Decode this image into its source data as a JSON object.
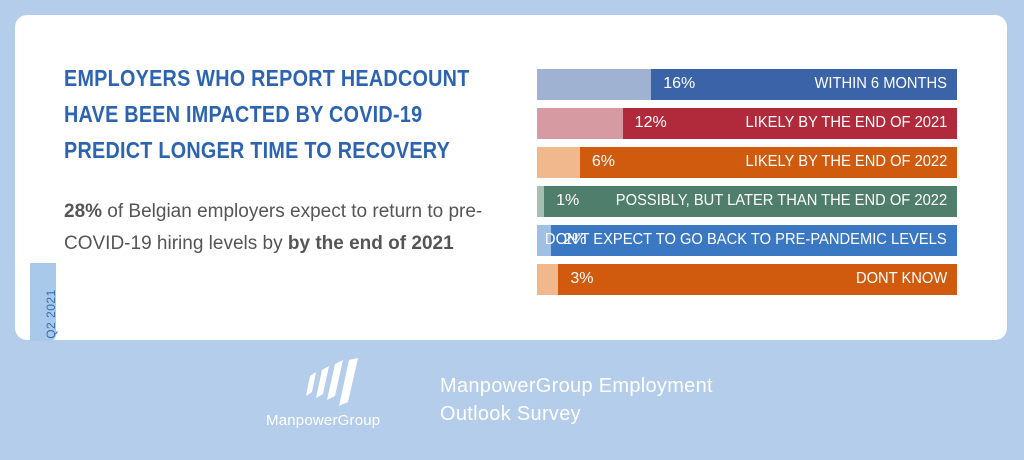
{
  "headline": [
    "EMPLOYERS WHO REPORT HEADCOUNT",
    "HAVE BEEN IMPACTED BY COVID-19",
    "PREDICT LONGER TIME TO RECOVERY"
  ],
  "subtext": {
    "pct": "28%",
    "part1": " of Belgian employers expect to return to pre-COVID-19 hiring levels by ",
    "bold": "by the end of 2021"
  },
  "quarter_tab": "Q2 2021",
  "brand": "ManpowerGroup",
  "survey_title_line1": "ManpowerGroup Employment",
  "survey_title_line2": "Outlook Survey",
  "chart_data": {
    "type": "bar",
    "orientation": "horizontal",
    "categories": [
      "WITHIN 6 MONTHS",
      "LIKELY BY THE END OF 2021",
      "LIKELY BY THE END OF 2022",
      "POSSIBLY, BUT LATER THAN THE END OF 2022",
      "DON'T EXPECT TO GO BACK TO PRE-PANDEMIC LEVELS",
      "DONT KNOW"
    ],
    "values": [
      16,
      12,
      6,
      1,
      2,
      3
    ],
    "value_labels": [
      "16%",
      "12%",
      "6%",
      "1%",
      "2%",
      "3%"
    ],
    "colors": [
      {
        "light": "#9fb2d2",
        "dark": "#3a63a8"
      },
      {
        "light": "#d69aa2",
        "dark": "#b02a3c"
      },
      {
        "light": "#f0b88c",
        "dark": "#d05a0e"
      },
      {
        "light": "#a7bfb3",
        "dark": "#4f7f6c"
      },
      {
        "light": "#9fbfe4",
        "dark": "#3a78c4"
      },
      {
        "light": "#f0b88c",
        "dark": "#d05a0e"
      }
    ],
    "xlim": [
      0,
      100
    ]
  }
}
